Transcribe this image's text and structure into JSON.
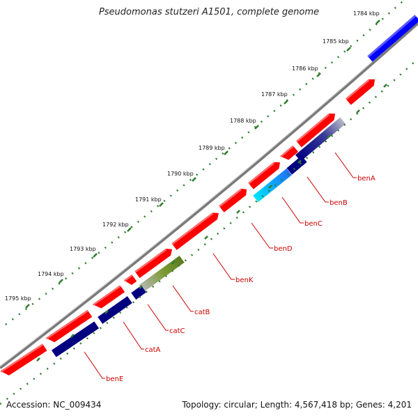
{
  "title": "Pseudomonas stutzeri A1501, complete genome",
  "footer": {
    "accession": "Accession: NC_009434",
    "summary": "Topology: circular; Length: 4,567,418 bp; Genes: 4,201"
  },
  "scale_labels": [
    "1784 kbp",
    "1785 kbp",
    "1786 kbp",
    "1787 kbp",
    "1788 kbp",
    "1789 kbp",
    "1790 kbp",
    "1791 kbp",
    "1792 kbp",
    "1793 kbp",
    "1794 kbp",
    "1795 kbp"
  ],
  "gene_labels": [
    "benA",
    "benB",
    "benC",
    "benD",
    "benK",
    "catB",
    "catC",
    "catA",
    "benE"
  ],
  "colors": {
    "cds": "#ff0000",
    "blast_hit": "#000080",
    "blue_feature": "#0000ff",
    "cyan_feature": "#00e5ff",
    "olive_feature": "#6b8e23",
    "ticks": "#2e7d2e",
    "backbone": "#8a8a8a",
    "label": "#cc0000"
  }
}
